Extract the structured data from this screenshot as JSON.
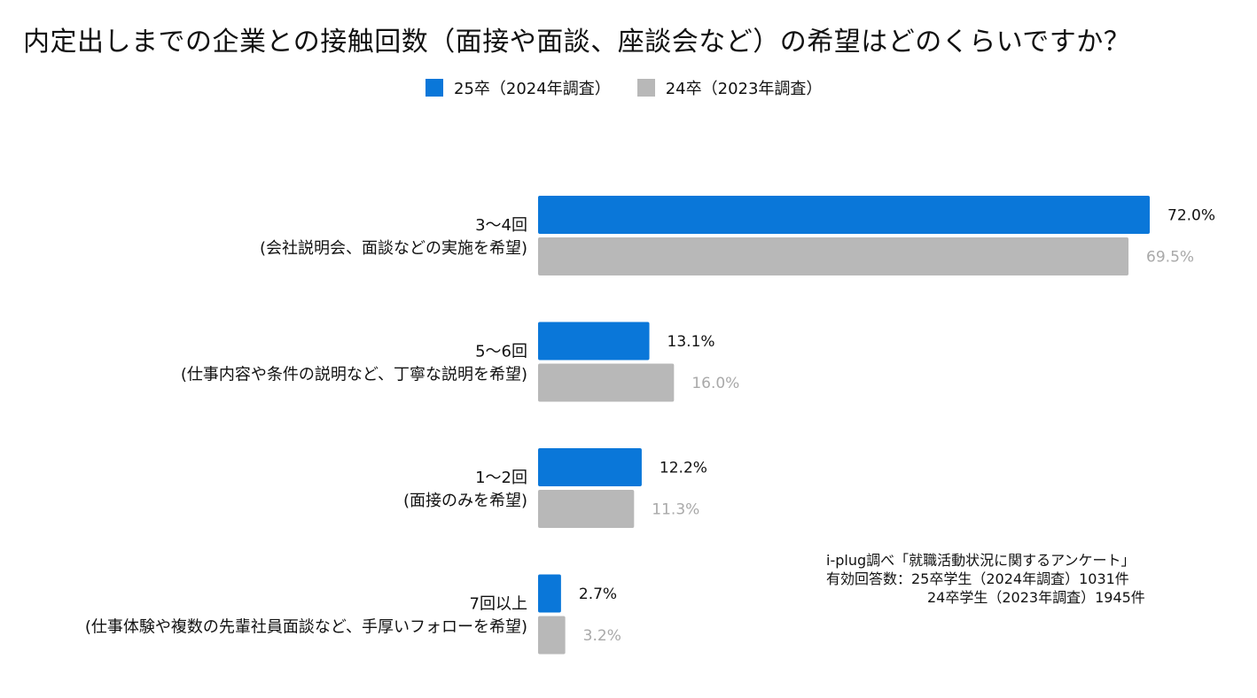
{
  "chart_data": {
    "type": "bar",
    "orientation": "horizontal",
    "title": "内定出しまでの企業との接触回数（面接や面談、座談会など）の希望はどのくらいですか？",
    "categories": [
      {
        "line1": "3〜4回",
        "line2": "(会社説明会、面談などの実施を希望)"
      },
      {
        "line1": "5〜6回",
        "line2": "(仕事内容や条件の説明など、丁寧な説明を希望)"
      },
      {
        "line1": "1〜2回",
        "line2": "(面接のみを希望)"
      },
      {
        "line1": "7回以上",
        "line2": "(仕事体験や複数の先輩社員面談など、手厚いフォローを希望)"
      }
    ],
    "series": [
      {
        "name": "25卒（2024年調査）",
        "color": "#0a77d9",
        "label_color": "#111111",
        "values": [
          72.0,
          13.1,
          12.2,
          2.7
        ],
        "labels": [
          "72.0%",
          "13.1%",
          "12.2%",
          "2.7%"
        ]
      },
      {
        "name": "24卒（2023年調査）",
        "color": "#b8b8b8",
        "label_color": "#a9a9a9",
        "values": [
          69.5,
          16.0,
          11.3,
          3.2
        ],
        "labels": [
          "69.5%",
          "16.0%",
          "11.3%",
          "3.2%"
        ]
      }
    ],
    "xlim": [
      0,
      72.0
    ],
    "legend_position": "top-center"
  },
  "source": {
    "line1": "i-plug調べ「就職活動状況に関するアンケート」",
    "line2": "有効回答数：25卒学生（2024年調査）1031件",
    "line3": "24卒学生（2023年調査）1945件"
  }
}
